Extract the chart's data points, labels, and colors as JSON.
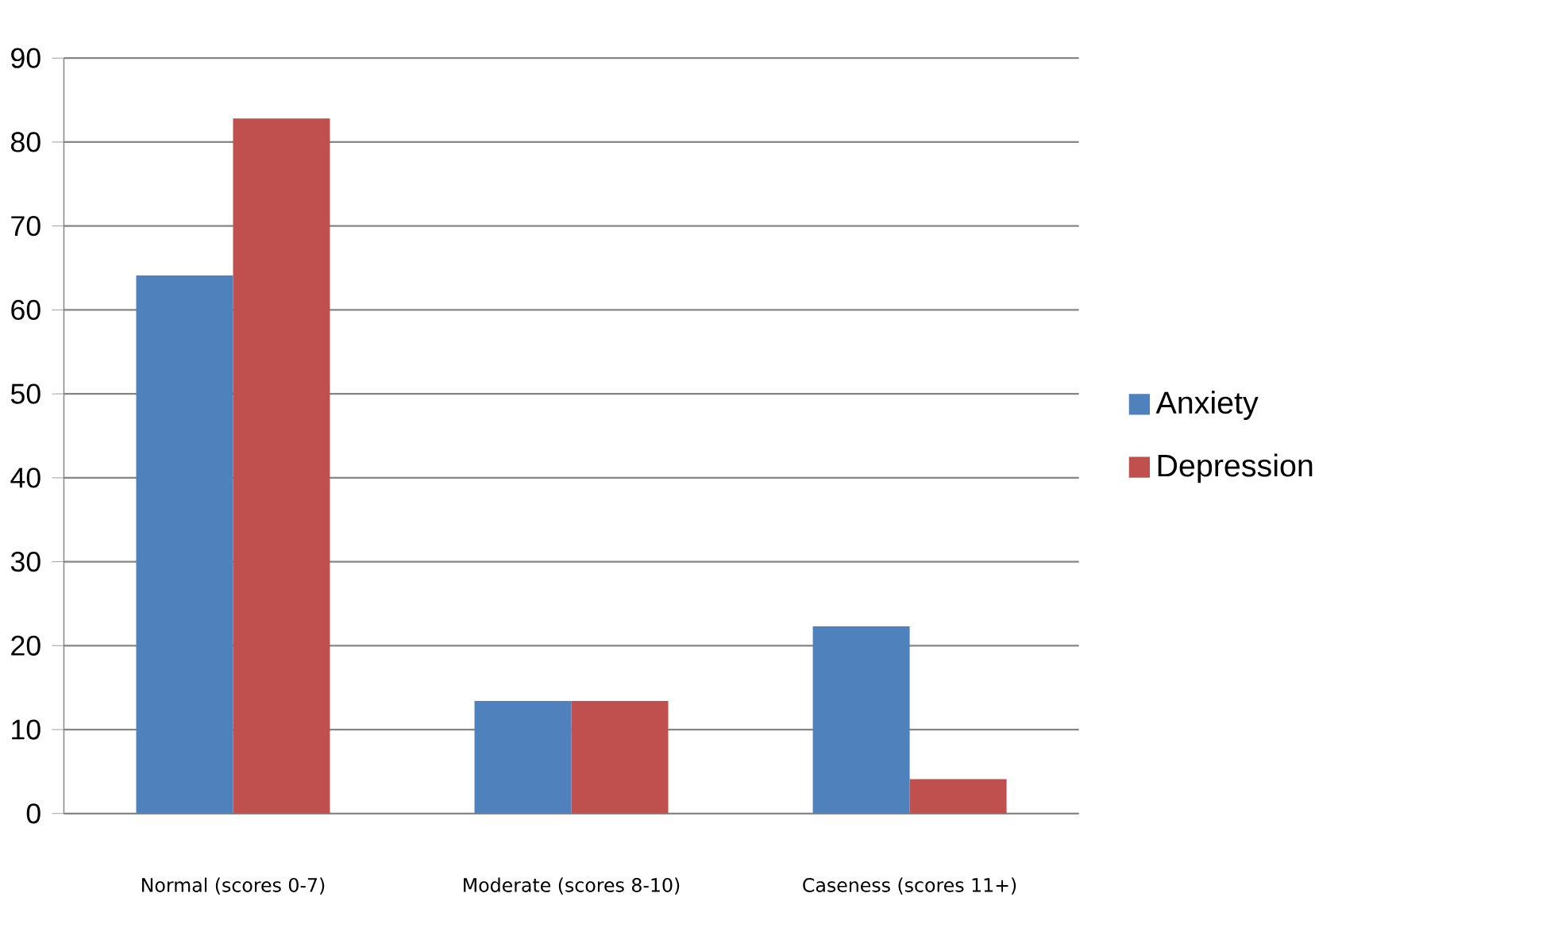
{
  "chart_data": {
    "type": "bar",
    "categories": [
      "Normal (scores 0-7)",
      "Moderate (scores 8-10)",
      "Caseness (scores 11+)"
    ],
    "series": [
      {
        "name": "Anxiety",
        "color": "#4f81bd",
        "values": [
          64.1,
          13.4,
          22.3
        ]
      },
      {
        "name": "Depression",
        "color": "#c0504d",
        "values": [
          82.8,
          13.4,
          4.1
        ]
      }
    ],
    "ylim": [
      0,
      90
    ],
    "yticks": [
      0,
      10,
      20,
      30,
      40,
      50,
      60,
      70,
      80,
      90
    ],
    "grid": "y",
    "legend": "right"
  }
}
